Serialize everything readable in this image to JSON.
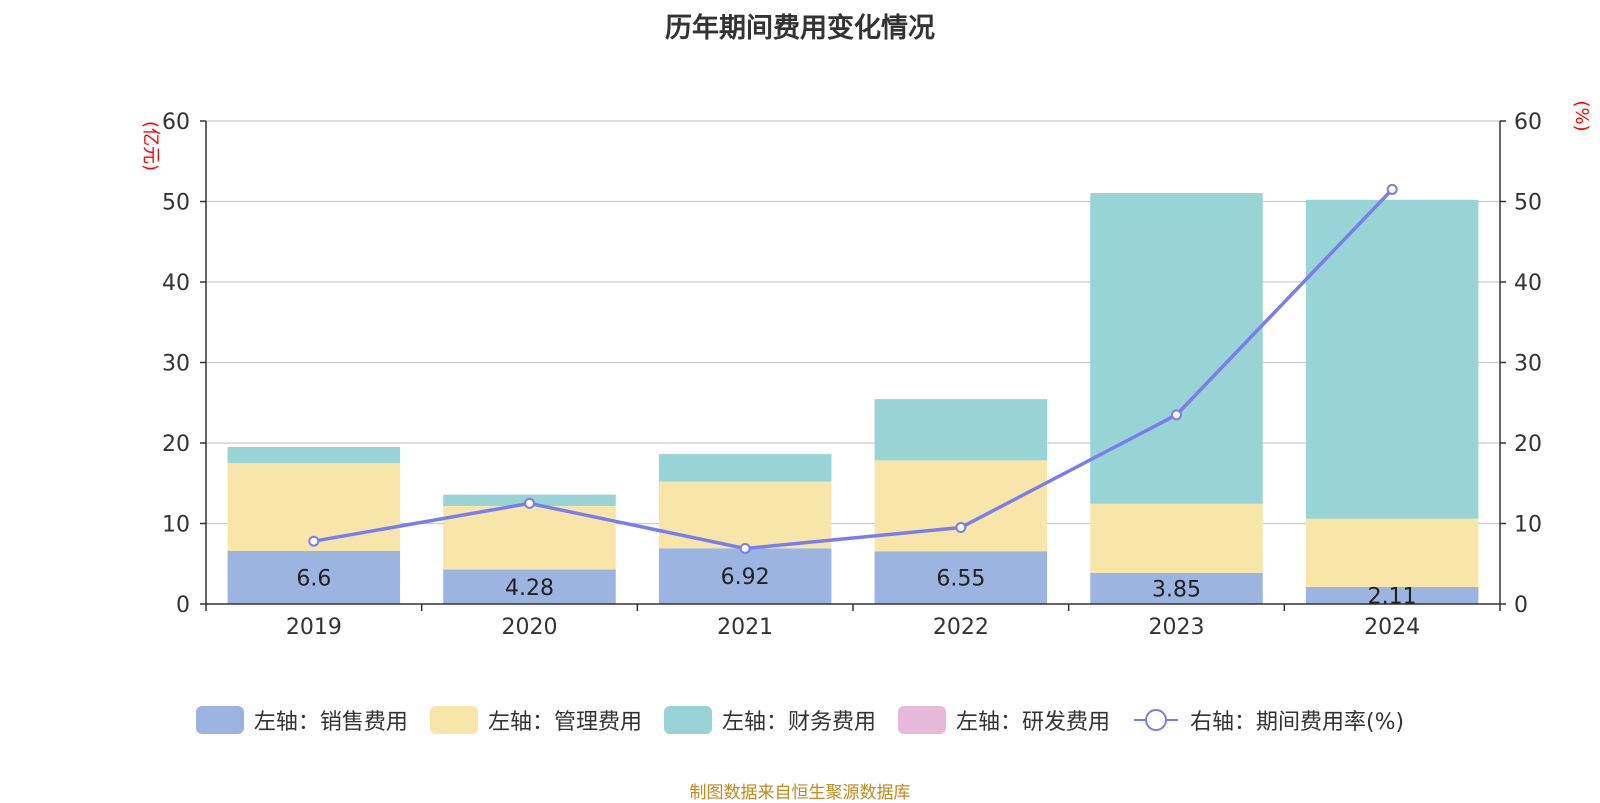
{
  "title": "历年期间费用变化情况",
  "source": "制图数据来自恒生聚源数据库",
  "colors": {
    "sales": "#9bb5e0",
    "admin": "#f7e6a7",
    "finance": "#98d3d5",
    "rd": "#e6b8d9",
    "rate": "#7a7df0",
    "axis_unit": "#ff0000",
    "grid": "#cccccc",
    "axis": "#333333"
  },
  "chart_data": {
    "type": "bar",
    "stacked": true,
    "categories": [
      "2019",
      "2020",
      "2021",
      "2022",
      "2023",
      "2024"
    ],
    "left_axis": {
      "unit": "(亿元)",
      "ylim": [
        0,
        60
      ],
      "ticks": [
        0,
        10,
        20,
        30,
        40,
        50,
        60
      ]
    },
    "right_axis": {
      "unit": "(%)",
      "ylim": [
        0,
        60
      ],
      "ticks": [
        0,
        10,
        20,
        30,
        40,
        50,
        60
      ]
    },
    "grid": true,
    "legend_position": "bottom",
    "series": [
      {
        "name": "左轴：销售费用",
        "type": "bar",
        "axis": "left",
        "color_key": "sales",
        "values": [
          6.6,
          4.28,
          6.92,
          6.55,
          3.85,
          2.11
        ],
        "labels": [
          "6.6",
          "4.28",
          "6.92",
          "6.55",
          "3.85",
          "2.11"
        ]
      },
      {
        "name": "左轴：管理费用",
        "type": "bar",
        "axis": "left",
        "color_key": "admin",
        "values": [
          10.9,
          7.9,
          8.3,
          11.3,
          8.6,
          8.5
        ]
      },
      {
        "name": "左轴：财务费用",
        "type": "bar",
        "axis": "left",
        "color_key": "finance",
        "values": [
          2.0,
          1.4,
          3.4,
          7.6,
          38.6,
          39.6
        ]
      },
      {
        "name": "左轴：研发费用",
        "type": "bar",
        "axis": "left",
        "color_key": "rd",
        "values": [
          0,
          0,
          0,
          0,
          0,
          0
        ]
      },
      {
        "name": "右轴：期间费用率(%)",
        "type": "line",
        "axis": "right",
        "color_key": "rate",
        "values": [
          7.8,
          12.5,
          6.9,
          9.5,
          23.5,
          51.5
        ]
      }
    ]
  }
}
